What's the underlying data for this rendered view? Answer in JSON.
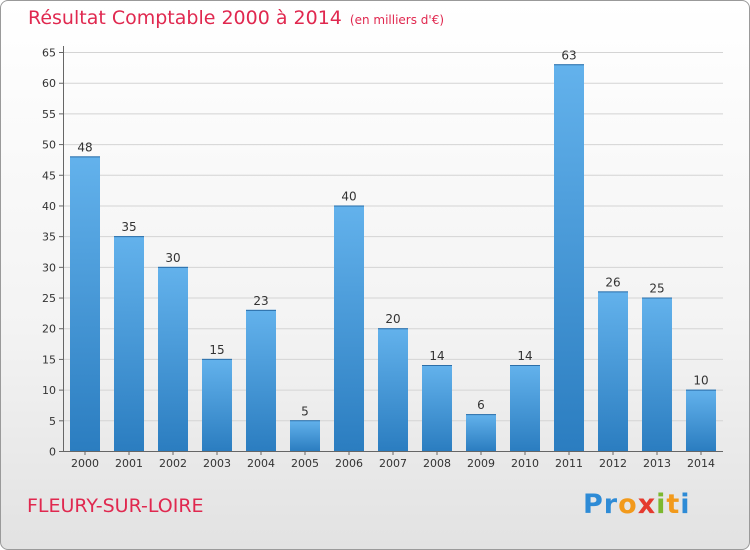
{
  "title": "Résultat Comptable 2000 à 2014",
  "unit": "(en milliers d'€)",
  "town": "FLEURY-SUR-LOIRE",
  "brand": "Proxiti",
  "colors": {
    "accent": "#e0284f",
    "bar_light": "#63b2ec",
    "bar_dark": "#2b7dc0"
  },
  "chart_data": {
    "type": "bar",
    "title": "Résultat Comptable 2000 à 2014",
    "subtitle": "(en milliers d'€)",
    "xlabel": "",
    "ylabel": "",
    "categories": [
      "2000",
      "2001",
      "2002",
      "2003",
      "2004",
      "2005",
      "2006",
      "2007",
      "2008",
      "2009",
      "2010",
      "2011",
      "2012",
      "2013",
      "2014"
    ],
    "values": [
      48,
      35,
      30,
      15,
      23,
      5,
      40,
      20,
      14,
      6,
      14,
      63,
      26,
      25,
      10
    ],
    "ylim": [
      0,
      65
    ],
    "yticks": [
      0,
      5,
      10,
      15,
      20,
      25,
      30,
      35,
      40,
      45,
      50,
      55,
      60,
      65
    ],
    "grid": true
  }
}
